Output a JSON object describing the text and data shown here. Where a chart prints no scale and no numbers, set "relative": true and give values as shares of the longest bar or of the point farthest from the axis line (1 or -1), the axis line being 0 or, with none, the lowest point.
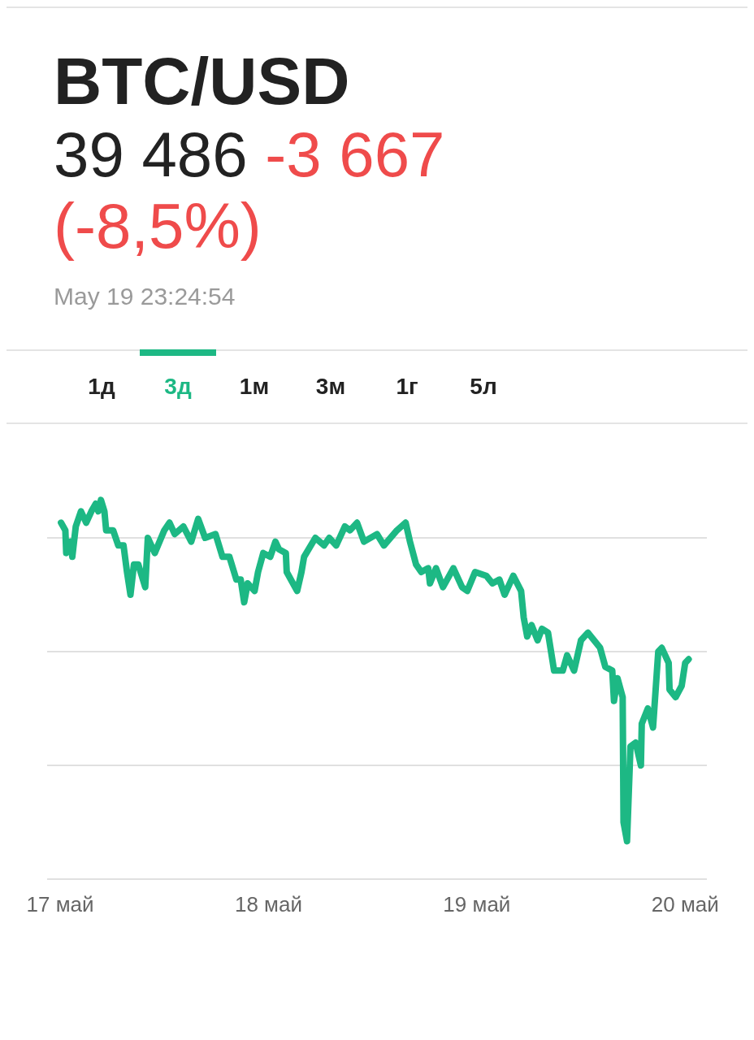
{
  "chart_data": {
    "type": "line",
    "title": "BTC/USD",
    "subtitle": "39 486",
    "annotations": [
      "-3 667 (-8,5%)",
      "May 19 23:24:54",
      "1д",
      "3д",
      "1м",
      "3м",
      "1г",
      "5л"
    ],
    "relative": true,
    "grid": "y",
    "marker": "none",
    "line_style": "solid",
    "xlim": [
      "--05-16T22:30",
      "--05-20T02:30"
    ],
    "xticks": [
      {
        "value": "--05-17",
        "label": "17 май"
      },
      {
        "value": "--05-18",
        "label": "18 май"
      },
      {
        "value": "--05-19",
        "label": "19 май"
      },
      {
        "value": "--05-20",
        "label": "20 май"
      }
    ],
    "series": [
      {
        "color": "#1db884",
        "x": [
          "--05-17T00:06",
          "--05-17T00:36",
          "--05-17T00:42",
          "--05-17T01:12",
          "--05-17T01:24",
          "--05-17T01:48",
          "--05-17T02:24",
          "--05-17T03:00",
          "--05-17T03:36",
          "--05-17T04:06",
          "--05-17T04:24",
          "--05-17T04:42",
          "--05-17T05:06",
          "--05-17T05:18",
          "--05-17T06:06",
          "--05-17T06:42",
          "--05-17T07:18",
          "--05-17T07:42",
          "--05-17T08:06",
          "--05-17T08:30",
          "--05-17T09:00",
          "--05-17T09:48",
          "--05-17T10:06",
          "--05-17T10:54",
          "--05-17T12:00",
          "--05-17T12:36",
          "--05-17T13:12",
          "--05-17T14:12",
          "--05-17T15:06",
          "--05-17T15:54",
          "--05-17T16:42",
          "--05-17T17:54",
          "--05-17T18:42",
          "--05-17T19:30",
          "--05-17T20:18",
          "--05-17T20:48",
          "--05-17T21:12",
          "--05-17T21:36",
          "--05-17T22:24",
          "--05-17T22:48",
          "--05-17T23:24",
          "--05-18T00:12",
          "--05-18T00:48",
          "--05-18T01:12",
          "--05-18T02:00",
          "--05-18T02:06",
          "--05-18T03:18",
          "--05-18T03:48",
          "--05-18T04:06",
          "--05-18T05:24",
          "--05-18T06:24",
          "--05-18T07:00",
          "--05-18T07:48",
          "--05-18T08:48",
          "--05-18T09:24",
          "--05-18T10:12",
          "--05-18T11:00",
          "--05-18T12:30",
          "--05-18T13:18",
          "--05-18T14:48",
          "--05-18T15:48",
          "--05-18T16:18",
          "--05-18T17:00",
          "--05-18T17:36",
          "--05-18T18:24",
          "--05-18T18:36",
          "--05-18T19:18",
          "--05-18T20:06",
          "--05-18T21:18",
          "--05-18T22:18",
          "--05-18T22:54",
          "--05-18T23:48",
          "--05-19T01:06",
          "--05-19T01:48",
          "--05-19T02:36",
          "--05-19T03:12",
          "--05-19T04:12",
          "--05-19T05:06",
          "--05-19T05:24",
          "--05-19T05:48",
          "--05-19T06:18",
          "--05-19T07:00",
          "--05-19T07:30",
          "--05-19T08:12",
          "--05-19T08:54",
          "--05-19T09:54",
          "--05-19T10:24",
          "--05-19T11:12",
          "--05-19T12:00",
          "--05-19T12:48",
          "--05-19T14:12",
          "--05-19T14:48",
          "--05-19T15:36",
          "--05-19T15:48",
          "--05-19T16:12",
          "--05-19T16:48",
          "--05-19T16:54",
          "--05-19T17:18",
          "--05-19T17:42",
          "--05-19T18:18",
          "--05-19T18:54",
          "--05-19T19:00",
          "--05-19T19:42",
          "--05-19T20:18",
          "--05-19T20:54",
          "--05-19T21:18",
          "--05-19T22:06",
          "--05-19T22:12",
          "--05-19T22:54",
          "--05-19T23:36",
          "--05-20T00:00",
          "--05-20T00:24"
        ],
        "values": [
          0.94,
          0.92,
          0.86,
          0.89,
          0.85,
          0.93,
          0.97,
          0.94,
          0.97,
          0.99,
          0.97,
          1.0,
          0.97,
          0.92,
          0.92,
          0.88,
          0.88,
          0.81,
          0.75,
          0.83,
          0.83,
          0.77,
          0.9,
          0.86,
          0.92,
          0.94,
          0.91,
          0.93,
          0.89,
          0.95,
          0.9,
          0.91,
          0.85,
          0.85,
          0.79,
          0.79,
          0.73,
          0.78,
          0.76,
          0.81,
          0.86,
          0.85,
          0.89,
          0.87,
          0.86,
          0.81,
          0.76,
          0.81,
          0.85,
          0.9,
          0.88,
          0.9,
          0.88,
          0.93,
          0.92,
          0.94,
          0.89,
          0.91,
          0.88,
          0.92,
          0.94,
          0.89,
          0.83,
          0.81,
          0.82,
          0.78,
          0.82,
          0.77,
          0.82,
          0.77,
          0.76,
          0.81,
          0.8,
          0.78,
          0.79,
          0.75,
          0.8,
          0.76,
          0.69,
          0.64,
          0.67,
          0.63,
          0.66,
          0.65,
          0.55,
          0.55,
          0.59,
          0.55,
          0.63,
          0.65,
          0.61,
          0.56,
          0.55,
          0.47,
          0.53,
          0.48,
          0.15,
          0.1,
          0.35,
          0.36,
          0.3,
          0.41,
          0.45,
          0.4,
          0.6,
          0.61,
          0.57,
          0.5,
          0.48,
          0.51,
          0.57,
          0.58
        ]
      }
    ]
  }
}
